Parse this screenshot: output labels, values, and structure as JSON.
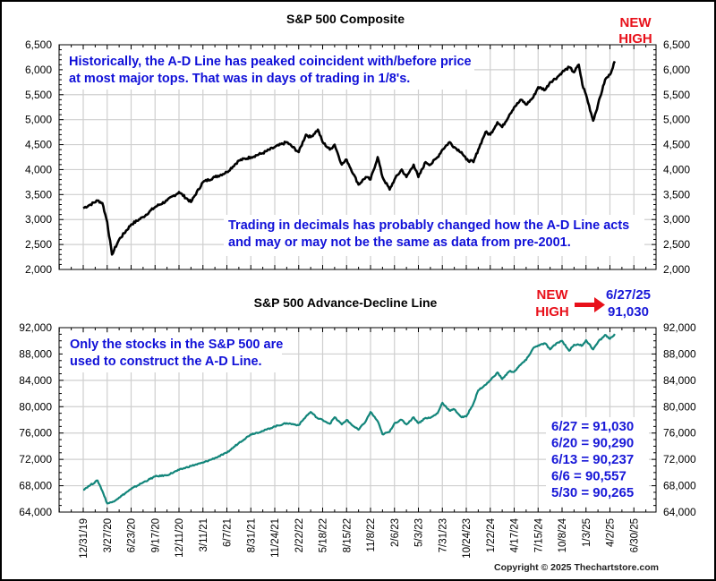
{
  "chart_data": [
    {
      "type": "line",
      "title": "S&P 500 Composite",
      "xlabel": "",
      "ylabel": "",
      "ylim": [
        2000,
        6500
      ],
      "yticks": [
        "2,000",
        "2,500",
        "3,000",
        "3,500",
        "4,000",
        "4,500",
        "5,000",
        "5,500",
        "6,000",
        "6,500"
      ],
      "ytick_values": [
        2000,
        2500,
        3000,
        3500,
        4000,
        4500,
        5000,
        5500,
        6000,
        6500
      ],
      "grid": true,
      "line_color": "#000000",
      "series": [
        {
          "name": "S&P 500 Composite",
          "x": [
            0,
            0.3,
            0.6,
            0.8,
            1.0,
            1.2,
            1.5,
            2.0,
            2.5,
            3.0,
            3.5,
            4.0,
            4.5,
            5.0,
            5.5,
            6.0,
            6.5,
            7.0,
            7.5,
            8.0,
            8.5,
            9.0,
            9.3,
            9.5,
            9.8,
            10.0,
            10.3,
            10.5,
            10.8,
            11.0,
            11.3,
            11.5,
            11.8,
            12.0,
            12.3,
            12.5,
            12.8,
            13.0,
            13.3,
            13.5,
            13.8,
            14.0,
            14.3,
            14.5,
            14.8,
            15.0,
            15.3,
            15.5,
            15.8,
            16.0,
            16.3,
            16.5,
            16.8,
            17.0,
            17.3,
            17.5,
            17.8,
            18.0,
            18.3,
            18.5,
            18.8,
            19.0,
            19.3,
            19.5,
            19.8,
            20.0,
            20.3,
            20.5,
            20.7,
            20.85,
            21.0,
            21.3,
            21.5,
            21.8,
            22.0,
            22.2
          ],
          "values": [
            3230,
            3300,
            3380,
            3330,
            2950,
            2300,
            2600,
            2900,
            3050,
            3250,
            3380,
            3550,
            3350,
            3750,
            3850,
            3950,
            4180,
            4250,
            4330,
            4450,
            4550,
            4350,
            4700,
            4650,
            4800,
            4550,
            4400,
            4500,
            4100,
            4200,
            3900,
            3700,
            3850,
            3800,
            4250,
            3850,
            3600,
            3800,
            4000,
            3850,
            4100,
            3850,
            4150,
            4100,
            4250,
            4400,
            4550,
            4450,
            4350,
            4200,
            4150,
            4400,
            4750,
            4700,
            4950,
            4850,
            5100,
            5250,
            5400,
            5300,
            5450,
            5650,
            5600,
            5750,
            5850,
            5950,
            6050,
            5950,
            6100,
            5700,
            5500,
            4980,
            5300,
            5800,
            5900,
            6170
          ]
        }
      ]
    },
    {
      "type": "line",
      "title": "S&P 500 Advance-Decline Line",
      "xlabel": "",
      "ylabel": "",
      "ylim": [
        64000,
        92000
      ],
      "yticks": [
        "64,000",
        "68,000",
        "72,000",
        "76,000",
        "80,000",
        "84,000",
        "88,000",
        "92,000"
      ],
      "ytick_values": [
        64000,
        68000,
        72000,
        76000,
        80000,
        84000,
        88000,
        92000
      ],
      "grid": true,
      "line_color": "#12857a",
      "series": [
        {
          "name": "S&P 500 A-D Line",
          "x": [
            0,
            0.3,
            0.6,
            0.8,
            1.0,
            1.2,
            1.5,
            2.0,
            2.5,
            3.0,
            3.5,
            4.0,
            4.5,
            5.0,
            5.5,
            6.0,
            6.5,
            7.0,
            7.5,
            8.0,
            8.5,
            9.0,
            9.3,
            9.5,
            9.8,
            10.0,
            10.3,
            10.5,
            10.8,
            11.0,
            11.3,
            11.5,
            11.8,
            12.0,
            12.3,
            12.5,
            12.8,
            13.0,
            13.3,
            13.5,
            13.8,
            14.0,
            14.3,
            14.5,
            14.8,
            15.0,
            15.3,
            15.5,
            15.8,
            16.0,
            16.3,
            16.5,
            16.8,
            17.0,
            17.3,
            17.5,
            17.8,
            18.0,
            18.3,
            18.5,
            18.8,
            19.0,
            19.3,
            19.5,
            19.8,
            20.0,
            20.3,
            20.5,
            20.7,
            20.85,
            21.0,
            21.3,
            21.5,
            21.8,
            22.0,
            22.2
          ],
          "values": [
            67400,
            68100,
            68800,
            67200,
            65300,
            65500,
            66200,
            67500,
            68500,
            69400,
            69600,
            70400,
            71000,
            71500,
            72200,
            73000,
            74500,
            75800,
            76300,
            77000,
            77500,
            77200,
            78500,
            79200,
            78200,
            78000,
            77400,
            78400,
            77300,
            78000,
            77000,
            76500,
            77800,
            79200,
            77800,
            75800,
            76200,
            77500,
            78000,
            77300,
            78400,
            77500,
            78300,
            78300,
            79000,
            80600,
            79400,
            79600,
            78400,
            78500,
            80500,
            82500,
            83300,
            84000,
            85200,
            84200,
            85400,
            85300,
            86500,
            87100,
            88900,
            89300,
            89600,
            88700,
            89700,
            90000,
            88500,
            89400,
            89400,
            89300,
            90100,
            88700,
            89800,
            90900,
            90300,
            91030
          ]
        }
      ]
    }
  ],
  "x_axis_labels": [
    "12/31/19",
    "3/27/20",
    "6/23/20",
    "9/17/20",
    "12/11/20",
    "3/11/21",
    "6/7/21",
    "8/31/21",
    "11/24/21",
    "2/22/22",
    "5/18/22",
    "8/15/22",
    "11/8/22",
    "2/6/23",
    "5/3/23",
    "7/31/23",
    "10/24/23",
    "1/22/24",
    "4/17/24",
    "7/15/24",
    "10/8/24",
    "1/3/25",
    "4/2/25",
    "6/30/25"
  ],
  "annotations": {
    "top_note": [
      "Historically, the A-D Line has peaked coincident with/before price",
      "at most major tops.  That was in days of trading in 1/8's."
    ],
    "decimal_note": [
      "Trading in decimals has probably changed how the A-D Line acts",
      "and may or may not be the same as data from pre-2001."
    ],
    "top_new_high": [
      "NEW",
      "HIGH"
    ],
    "bottom_new_high": [
      "NEW",
      "HIGH"
    ],
    "bottom_high_value": [
      "6/27/25",
      "91,030"
    ],
    "constituents_note": [
      "Only the stocks in the S&P 500 are",
      "used to construct the A-D Line."
    ],
    "weekly_values": [
      "6/27 = 91,030",
      "6/20 = 90,290",
      "6/13 = 90,237",
      "6/6 = 90,557",
      "5/30 = 90,265"
    ],
    "copyright": "Copyright © 2025 Thechartstore.com"
  },
  "colors": {
    "annotation_blue": "#1010d8",
    "highlight_red": "#e8101a",
    "ad_line": "#12857a",
    "price_line": "#000000",
    "grid": "#c8c8c8"
  }
}
